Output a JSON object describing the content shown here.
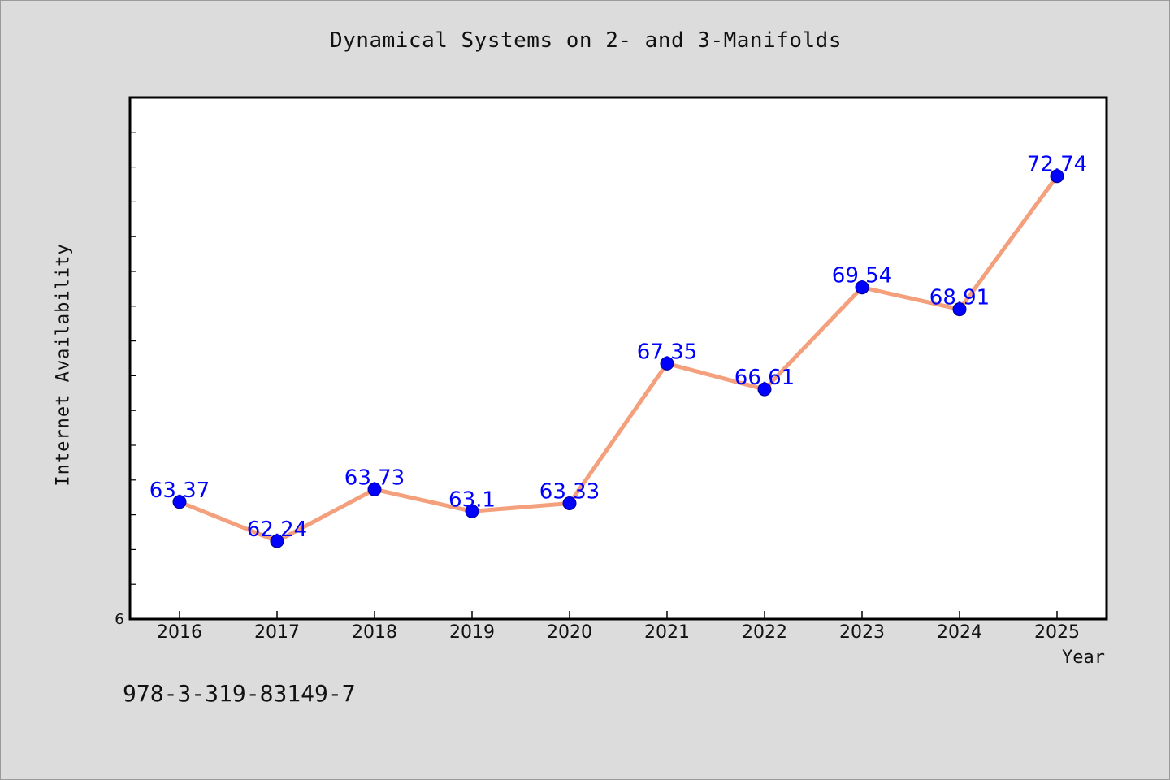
{
  "chart_data": {
    "type": "line",
    "title": "Dynamical Systems on 2- and 3-Manifolds",
    "xlabel": "Year",
    "ylabel": "Internet Availability",
    "categories": [
      "2016",
      "2017",
      "2018",
      "2019",
      "2020",
      "2021",
      "2022",
      "2023",
      "2024",
      "2025"
    ],
    "series": [
      {
        "values": [
          63.37,
          62.24,
          63.73,
          63.1,
          63.33,
          67.35,
          66.61,
          69.54,
          68.91,
          72.74
        ],
        "data_labels": [
          "63.37",
          "62.24",
          "63.73",
          "63.1",
          "63.33",
          "67.35",
          "66.61",
          "69.54",
          "68.91",
          "72.74"
        ]
      }
    ],
    "y_tick_labels": [
      "6"
    ],
    "ylim": [
      60.0,
      75.0
    ],
    "y_minor_step": 1.0,
    "grid": false,
    "line_color": "#f4a07c",
    "marker_color": "#0000ff",
    "label_color": "#0000ff"
  },
  "caption": "978-3-319-83149-7"
}
